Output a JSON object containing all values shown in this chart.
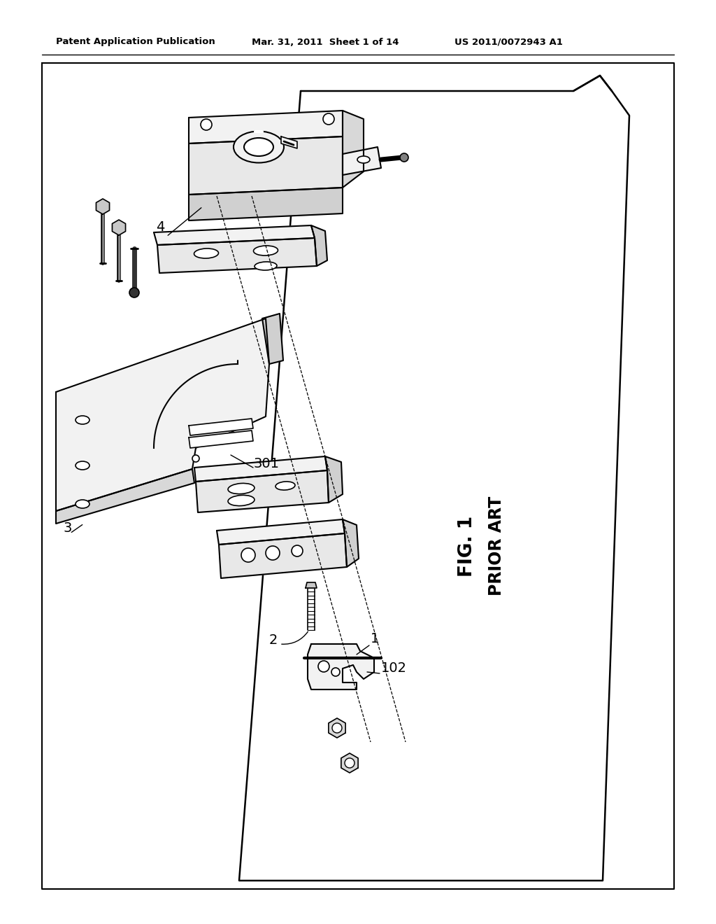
{
  "background_color": "#ffffff",
  "header_left": "Patent Application Publication",
  "header_mid": "Mar. 31, 2011  Sheet 1 of 14",
  "header_right": "US 2011/0072943 A1",
  "fig_label": "FIG. 1",
  "fig_sublabel": "PRIOR ART",
  "line_color": "#000000",
  "line_width": 1.5,
  "border_color": "#000000",
  "gray_fill": "#e8e8e8",
  "light_gray": "#f2f2f2",
  "white": "#ffffff"
}
